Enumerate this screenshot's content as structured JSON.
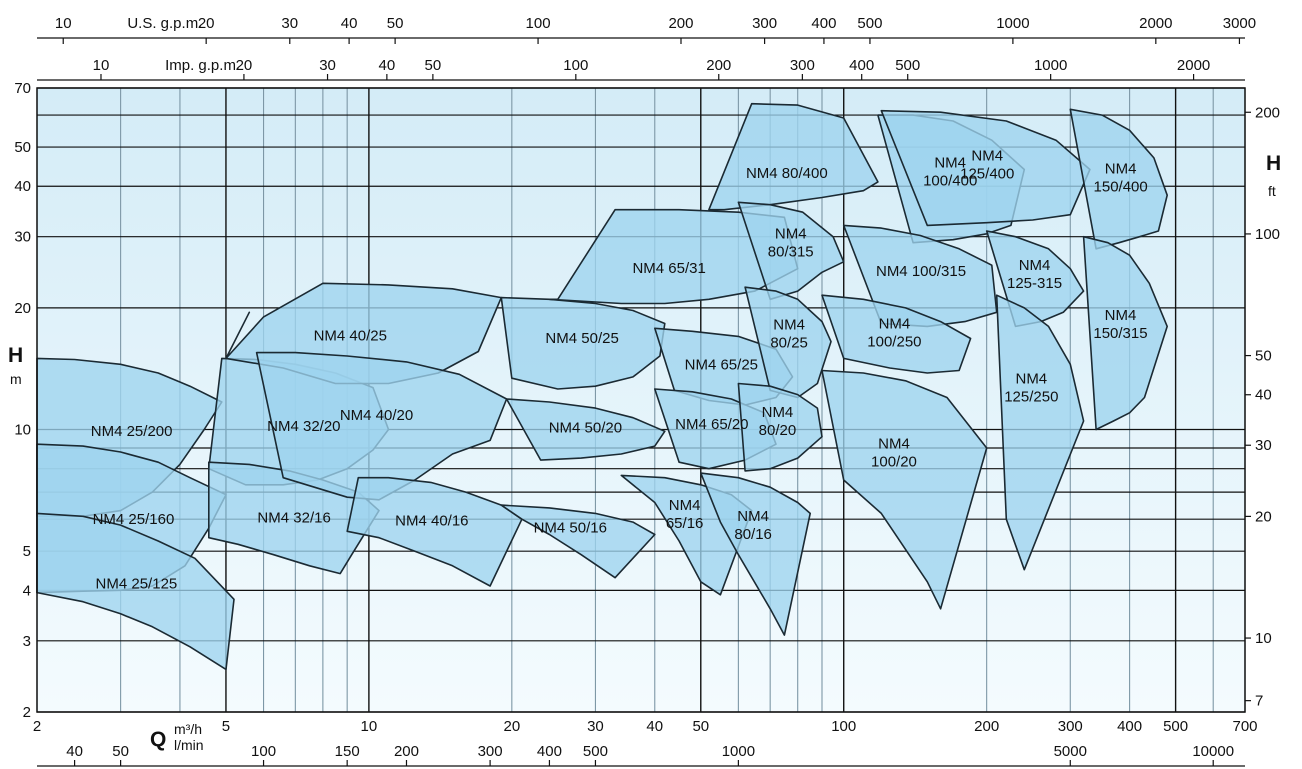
{
  "chart_data": {
    "type": "area",
    "title": "",
    "x_scale": "log",
    "y_scale": "log",
    "xlim": [
      2,
      700
    ],
    "ylim": [
      2,
      70
    ],
    "grid": true,
    "colors": {
      "background_top": "#d4ecf7",
      "background_bottom": "#f4fbfe",
      "region_fill": "#9ed3ee",
      "grid_dark": "#111111",
      "grid_light": "#7d97a6",
      "outline": "#1b2a33"
    },
    "axes": {
      "bottom_primary": {
        "unit": "m³/h",
        "label": "Q",
        "ticks": [
          2,
          5,
          10,
          20,
          30,
          40,
          50,
          100,
          200,
          300,
          400,
          500,
          700
        ],
        "tick_labels": [
          "2",
          "5",
          "10",
          "20",
          "30",
          "40",
          "50",
          "100",
          "200",
          "300",
          "400",
          "500",
          "700"
        ]
      },
      "bottom_secondary": {
        "unit": "l/min",
        "ticks": [
          40,
          50,
          100,
          150,
          200,
          300,
          400,
          500,
          1000,
          5000,
          10000
        ],
        "tick_labels": [
          "40",
          "50",
          "100",
          "150",
          "200",
          "300",
          "400",
          "500",
          "1000",
          "5000",
          "10000"
        ]
      },
      "top_us": {
        "unit": "U.S. g.p.m.",
        "ticks": [
          10,
          20,
          30,
          40,
          50,
          100,
          200,
          300,
          400,
          500,
          1000,
          2000,
          3000
        ],
        "tick_labels": [
          "10",
          "20",
          "30",
          "40",
          "50",
          "100",
          "200",
          "300",
          "400",
          "500",
          "1000",
          "2000",
          "3000"
        ]
      },
      "top_imp": {
        "unit": "Imp. g.p.m.",
        "ticks": [
          10,
          20,
          30,
          40,
          50,
          100,
          200,
          300,
          400,
          500,
          1000,
          2000
        ],
        "tick_labels": [
          "10",
          "20",
          "30",
          "40",
          "50",
          "100",
          "200",
          "300",
          "400",
          "500",
          "1000",
          "2000"
        ]
      },
      "left": {
        "label": "H",
        "unit": "m",
        "ticks": [
          2,
          3,
          4,
          5,
          10,
          20,
          30,
          40,
          50,
          70
        ],
        "tick_labels": [
          "2",
          "3",
          "4",
          "5",
          "10",
          "20",
          "30",
          "40",
          "50",
          "70"
        ]
      },
      "right": {
        "label": "H",
        "unit": "ft",
        "ticks": [
          7,
          10,
          20,
          30,
          40,
          50,
          100,
          200
        ],
        "tick_labels": [
          "7",
          "10",
          "20",
          "30",
          "40",
          "50",
          "100",
          "200"
        ]
      }
    },
    "series": [
      {
        "name": "NM4 25/200",
        "label_lines": [
          "NM4 25/200"
        ],
        "q": [
          2,
          2.4,
          3.0,
          3.6,
          4.2,
          4.9,
          4.5,
          4.0,
          3.5,
          3.0,
          2.5,
          2.0
        ],
        "h": [
          15.0,
          14.9,
          14.5,
          13.8,
          12.8,
          11.7,
          10.0,
          8.2,
          7.0,
          6.3,
          6.1,
          6.1
        ]
      },
      {
        "name": "NM4 25/160",
        "label_lines": [
          "NM4 25/160"
        ],
        "q": [
          2,
          2.5,
          3.0,
          3.6,
          4.2,
          5.0,
          4.6,
          4.1,
          3.5,
          3.0,
          2.5,
          2.0
        ],
        "h": [
          9.2,
          9.1,
          8.8,
          8.3,
          7.6,
          6.9,
          5.7,
          4.6,
          4.1,
          4.0,
          3.98,
          3.95
        ]
      },
      {
        "name": "NM4 25/125",
        "label_lines": [
          "NM4 25/125"
        ],
        "q": [
          2,
          2.5,
          3.0,
          3.6,
          4.3,
          5.2,
          5.0,
          4.2,
          3.5,
          3.0,
          2.5,
          2.0
        ],
        "h": [
          6.2,
          6.1,
          5.8,
          5.3,
          4.8,
          3.8,
          2.55,
          2.9,
          3.25,
          3.5,
          3.75,
          3.95
        ]
      },
      {
        "name": "NM4 32/20",
        "label_lines": [
          "NM4 32/20"
        ],
        "q": [
          4.9,
          5.8,
          7.0,
          8.5,
          10.2,
          11.0,
          10.2,
          9.0,
          7.8,
          6.6,
          5.5,
          4.6
        ],
        "h": [
          15.0,
          14.9,
          14.5,
          13.8,
          12.7,
          10.0,
          8.9,
          8.0,
          7.5,
          7.3,
          7.3,
          8.0
        ]
      },
      {
        "name": "NM4 32/16",
        "label_lines": [
          "NM4 32/16"
        ],
        "q": [
          4.6,
          5.6,
          6.8,
          8.0,
          9.5,
          10.5,
          9.2,
          8.7,
          7.5,
          6.3,
          5.3,
          4.6
        ],
        "h": [
          8.3,
          8.2,
          7.9,
          7.5,
          7.0,
          6.3,
          4.9,
          4.4,
          4.6,
          4.9,
          5.2,
          5.4
        ]
      },
      {
        "name": "NM4 40/25",
        "label_lines": [
          "NM4 40/25"
        ],
        "q": [
          5.0,
          6.0,
          8.0,
          11.0,
          15.0,
          19.0,
          17.0,
          14.0,
          11.0,
          8.5,
          6.6,
          5.0,
          5.6
        ],
        "h": [
          15.0,
          19.0,
          23.0,
          22.8,
          22.3,
          21.2,
          15.6,
          13.8,
          13.0,
          13.0,
          14.2,
          15.0,
          19.5
        ]
      },
      {
        "name": "NM4 40/20",
        "label_lines": [
          "NM4 40/20"
        ],
        "q": [
          5.8,
          7.0,
          9.0,
          12.0,
          15.5,
          19.5,
          18.0,
          15.0,
          12.5,
          10.5,
          9.0,
          6.6,
          5.8
        ],
        "h": [
          15.5,
          15.5,
          15.2,
          14.7,
          13.7,
          11.9,
          9.4,
          8.7,
          7.5,
          6.7,
          6.8,
          7.6,
          15.5
        ]
      },
      {
        "name": "NM4 40/16",
        "label_lines": [
          "NM4 40/16"
        ],
        "q": [
          9.5,
          11.0,
          13.5,
          16.0,
          19.0,
          21.0,
          18.0,
          15.0,
          12.5,
          10.5,
          9.0
        ],
        "h": [
          7.6,
          7.6,
          7.4,
          7.0,
          6.5,
          6.0,
          4.1,
          4.6,
          5.0,
          5.4,
          5.6
        ]
      },
      {
        "name": "NM4 50/25",
        "label_lines": [
          "NM4 50/25"
        ],
        "q": [
          19.0,
          24.0,
          30.0,
          36.0,
          42.0,
          41.0,
          36.0,
          30.0,
          25.0,
          20.0,
          19.0
        ],
        "h": [
          21.2,
          21.0,
          20.5,
          19.7,
          18.3,
          15.2,
          13.5,
          12.8,
          12.6,
          13.4,
          21.2
        ]
      },
      {
        "name": "NM4 50/20",
        "label_lines": [
          "NM4 50/20"
        ],
        "q": [
          19.5,
          24.0,
          30.0,
          36.0,
          42.0,
          40.0,
          34.0,
          28.0,
          23.0,
          19.5
        ],
        "h": [
          11.9,
          11.7,
          11.3,
          10.7,
          9.9,
          9.1,
          8.7,
          8.5,
          8.4,
          11.9
        ]
      },
      {
        "name": "NM4 50/16",
        "label_lines": [
          "NM4 50/16"
        ],
        "q": [
          19.0,
          24.0,
          30.0,
          36.0,
          40.0,
          33.0,
          28.0,
          24.0,
          21.0,
          19.0
        ],
        "h": [
          6.5,
          6.4,
          6.2,
          5.9,
          5.5,
          4.3,
          4.9,
          5.5,
          6.0,
          6.5
        ]
      },
      {
        "name": "NM4 65/31",
        "label_lines": [
          "NM4 65/31"
        ],
        "q": [
          25.0,
          33.0,
          45.0,
          60.0,
          75.0,
          80.0,
          65.0,
          52.0,
          42.0,
          34.0,
          24.0,
          25.0
        ],
        "h": [
          21.0,
          35.0,
          35.0,
          34.5,
          33.5,
          25.0,
          22.0,
          21.0,
          20.5,
          20.5,
          21.0,
          21.0
        ]
      },
      {
        "name": "NM4 65/25",
        "label_lines": [
          "NM4 65/25"
        ],
        "q": [
          40.0,
          48.0,
          60.0,
          72.0,
          78.0,
          72.0,
          62.0,
          52.0,
          44.0,
          40.0
        ],
        "h": [
          17.8,
          17.5,
          17.0,
          15.8,
          13.5,
          12.0,
          11.5,
          11.8,
          12.5,
          17.8
        ]
      },
      {
        "name": "NM4 65/20",
        "label_lines": [
          "NM4 65/20"
        ],
        "q": [
          40.0,
          48.0,
          58.0,
          68.0,
          72.0,
          62.0,
          52.0,
          45.0,
          40.0
        ],
        "h": [
          12.6,
          12.4,
          11.9,
          11.0,
          9.2,
          8.4,
          8.0,
          8.3,
          12.6
        ]
      },
      {
        "name": "NM4 65/16",
        "label_lines": [
          "NM4",
          "65/16"
        ],
        "q": [
          34.0,
          42.0,
          50.0,
          58.0,
          64.0,
          55.0,
          50.0,
          45.0,
          40.0,
          34.0
        ],
        "h": [
          7.7,
          7.6,
          7.3,
          6.9,
          6.3,
          3.9,
          4.2,
          5.3,
          6.6,
          7.7
        ]
      },
      {
        "name": "NM4 80/400",
        "label_lines": [
          "NM4 80/400"
        ],
        "q": [
          52.0,
          64.0,
          80.0,
          100.0,
          118.0,
          110.0,
          90.0,
          70.0,
          56.0,
          52.0
        ],
        "h": [
          35.0,
          64.0,
          63.5,
          59.0,
          41.0,
          39.0,
          37.5,
          36.0,
          35.0,
          35.0
        ]
      },
      {
        "name": "NM4 80/315",
        "label_lines": [
          "NM4",
          "80/315"
        ],
        "q": [
          60.0,
          70.0,
          82.0,
          95.0,
          100.0,
          90.0,
          80.0,
          70.0,
          60.0
        ],
        "h": [
          36.5,
          36.0,
          34.5,
          30.0,
          26.0,
          24.5,
          22.0,
          21.0,
          36.5
        ]
      },
      {
        "name": "NM4 80/25",
        "label_lines": [
          "NM4",
          "80/25"
        ],
        "q": [
          62.0,
          72.0,
          80.0,
          90.0,
          94.0,
          88.0,
          80.0,
          70.0,
          62.0
        ],
        "h": [
          22.5,
          22.0,
          21.0,
          18.5,
          16.5,
          13.0,
          12.0,
          12.5,
          22.5
        ]
      },
      {
        "name": "NM4 80/20",
        "label_lines": [
          "NM4",
          "80/20"
        ],
        "q": [
          60.0,
          70.0,
          80.0,
          88.0,
          90.0,
          80.0,
          70.0,
          62.0,
          60.0
        ],
        "h": [
          13.0,
          12.8,
          12.2,
          11.3,
          9.6,
          8.5,
          8.0,
          7.9,
          13.0
        ]
      },
      {
        "name": "NM4 80/16",
        "label_lines": [
          "NM4",
          "80/16"
        ],
        "q": [
          50.0,
          60.0,
          70.0,
          80.0,
          85.0,
          75.0,
          70.0,
          60.0,
          55.0,
          50.0
        ],
        "h": [
          7.8,
          7.6,
          7.2,
          6.6,
          6.2,
          3.1,
          3.6,
          4.9,
          5.9,
          7.8
        ]
      },
      {
        "name": "NM4 100/400",
        "label_lines": [
          "NM4",
          "100/400"
        ],
        "q": [
          118.0,
          140.0,
          170.0,
          205.0,
          240.0,
          225.0,
          200.0,
          170.0,
          140.0,
          118.0
        ],
        "h": [
          60.0,
          60.0,
          58.0,
          52.0,
          44.0,
          32.0,
          30.5,
          29.5,
          29.0,
          60.0
        ]
      },
      {
        "name": "NM4 100/315",
        "label_lines": [
          "NM4 100/315"
        ],
        "q": [
          100.0,
          120.0,
          145.0,
          175.0,
          205.0,
          210.0,
          180.0,
          150.0,
          120.0,
          100.0
        ],
        "h": [
          32.0,
          31.5,
          30.2,
          28.0,
          25.5,
          19.5,
          18.5,
          18.0,
          18.3,
          32.0
        ]
      },
      {
        "name": "NM4 100/250",
        "label_lines": [
          "NM4",
          "100/250"
        ],
        "q": [
          90.0,
          110.0,
          135.0,
          160.0,
          185.0,
          175.0,
          150.0,
          125.0,
          100.0,
          90.0
        ],
        "h": [
          21.5,
          21.0,
          20.0,
          18.5,
          16.8,
          14.0,
          13.8,
          14.2,
          15.0,
          21.5
        ]
      },
      {
        "name": "NM4 100/20",
        "label_lines": [
          "NM4",
          "100/20"
        ],
        "q": [
          90.0,
          110.0,
          135.0,
          165.0,
          200.0,
          160.0,
          150.0,
          120.0,
          100.0,
          90.0
        ],
        "h": [
          14.0,
          13.8,
          13.2,
          12.0,
          9.0,
          3.6,
          4.2,
          6.2,
          7.5,
          14.0
        ]
      },
      {
        "name": "NM4 125/400",
        "label_lines": [
          "NM4",
          "125/400"
        ],
        "q": [
          120.0,
          160.0,
          220.0,
          280.0,
          330.0,
          300.0,
          250.0,
          200.0,
          150.0,
          120.0
        ],
        "h": [
          61.5,
          61.0,
          58.0,
          52.0,
          44.0,
          34.0,
          33.0,
          32.5,
          32.0,
          61.5
        ]
      },
      {
        "name": "NM4 125-315",
        "label_lines": [
          "NM4",
          "125-315"
        ],
        "q": [
          200.0,
          230.0,
          270.0,
          300.0,
          320.0,
          290.0,
          260.0,
          230.0,
          200.0
        ],
        "h": [
          31.0,
          30.0,
          28.0,
          25.0,
          22.0,
          19.5,
          18.5,
          18.0,
          31.0
        ]
      },
      {
        "name": "NM4 125/250",
        "label_lines": [
          "NM4",
          "125/250"
        ],
        "q": [
          210.0,
          240.0,
          270.0,
          300.0,
          320.0,
          240.0,
          220.0,
          210.0
        ],
        "h": [
          21.5,
          20.0,
          18.0,
          14.5,
          10.5,
          4.5,
          6.0,
          21.5
        ]
      },
      {
        "name": "NM4 150/400",
        "label_lines": [
          "NM4",
          "150/400"
        ],
        "q": [
          300.0,
          350.0,
          400.0,
          450.0,
          480.0,
          460.0,
          420.0,
          380.0,
          340.0,
          300.0
        ],
        "h": [
          62.0,
          60.0,
          55.0,
          47.0,
          38.0,
          31.0,
          30.0,
          29.0,
          28.0,
          62.0
        ]
      },
      {
        "name": "NM4 150/315",
        "label_lines": [
          "NM4",
          "150/315"
        ],
        "q": [
          320.0,
          360.0,
          400.0,
          440.0,
          480.0,
          430.0,
          400.0,
          370.0,
          340.0,
          320.0
        ],
        "h": [
          30.0,
          29.0,
          27.0,
          23.0,
          18.0,
          12.0,
          11.0,
          10.5,
          10.0,
          30.0
        ]
      }
    ]
  }
}
